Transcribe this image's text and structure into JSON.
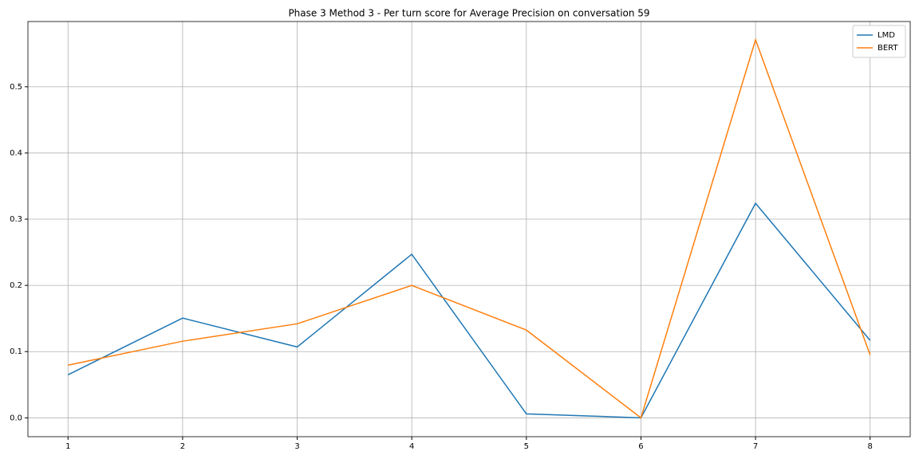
{
  "chart_data": {
    "type": "line",
    "title": "Phase 3 Method 3 - Per turn score for Average Precision on conversation 59",
    "x": [
      1,
      2,
      3,
      4,
      5,
      6,
      7,
      8
    ],
    "series": [
      {
        "name": "LMD",
        "color": "#1f77b4",
        "values": [
          0.065,
          0.1506,
          0.107,
          0.247,
          0.006,
          0.0,
          0.324,
          0.117
        ]
      },
      {
        "name": "BERT",
        "color": "#ff7f0e",
        "values": [
          0.0795,
          0.1157,
          0.142,
          0.2,
          0.1325,
          0.0,
          0.571,
          0.095
        ]
      }
    ],
    "xlim": [
      0.65,
      8.35
    ],
    "xticks": [
      1,
      2,
      3,
      4,
      5,
      6,
      7,
      8
    ],
    "ylim": [
      -0.0285,
      0.5985
    ],
    "yticks": [
      {
        "value": 0,
        "label": "0.0"
      },
      0.1,
      0.2,
      0.3,
      0.4,
      0.5
    ],
    "grid": true,
    "legend": "upper-right"
  }
}
